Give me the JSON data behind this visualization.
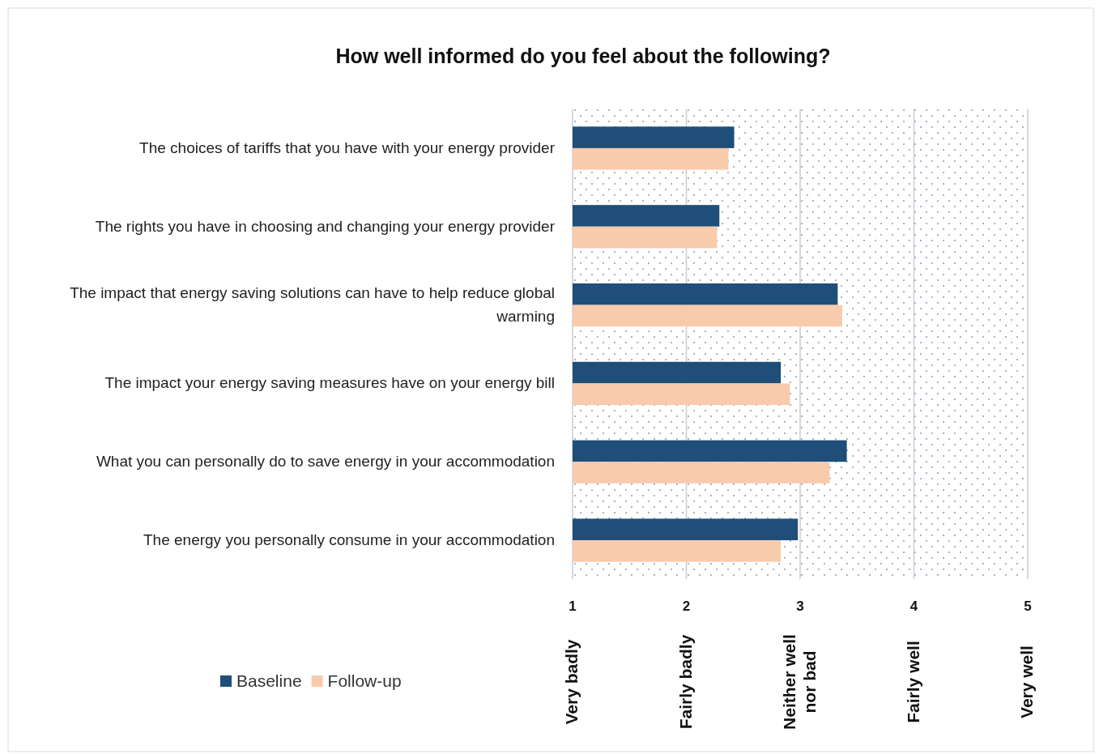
{
  "chart_data": {
    "type": "bar",
    "orientation": "horizontal",
    "title": "How well informed do you feel about the following?",
    "categories": [
      "The choices of tariffs that you have with your energy provider",
      "The rights you have in choosing and changing your energy provider",
      "The impact that energy saving solutions can have to help reduce global warming",
      "The impact your energy saving measures have on your energy bill",
      "What you can personally do to save energy in your accommodation",
      "The energy you personally consume in your accommodation"
    ],
    "series": [
      {
        "name": "Baseline",
        "color": "#1f4e79",
        "values": [
          2.42,
          2.29,
          3.33,
          2.83,
          3.41,
          2.98
        ]
      },
      {
        "name": "Follow-up",
        "color": "#f8cbad",
        "values": [
          2.37,
          2.27,
          3.37,
          2.91,
          3.26,
          2.83
        ]
      }
    ],
    "xlim": [
      1,
      5
    ],
    "xticks": [
      1,
      2,
      3,
      4,
      5
    ],
    "annotations": [
      "Very badly",
      "Fairly badly",
      "Neither well nor bad",
      "Fairly well",
      "Very well"
    ],
    "grid": "x",
    "legend": "bottom left"
  }
}
